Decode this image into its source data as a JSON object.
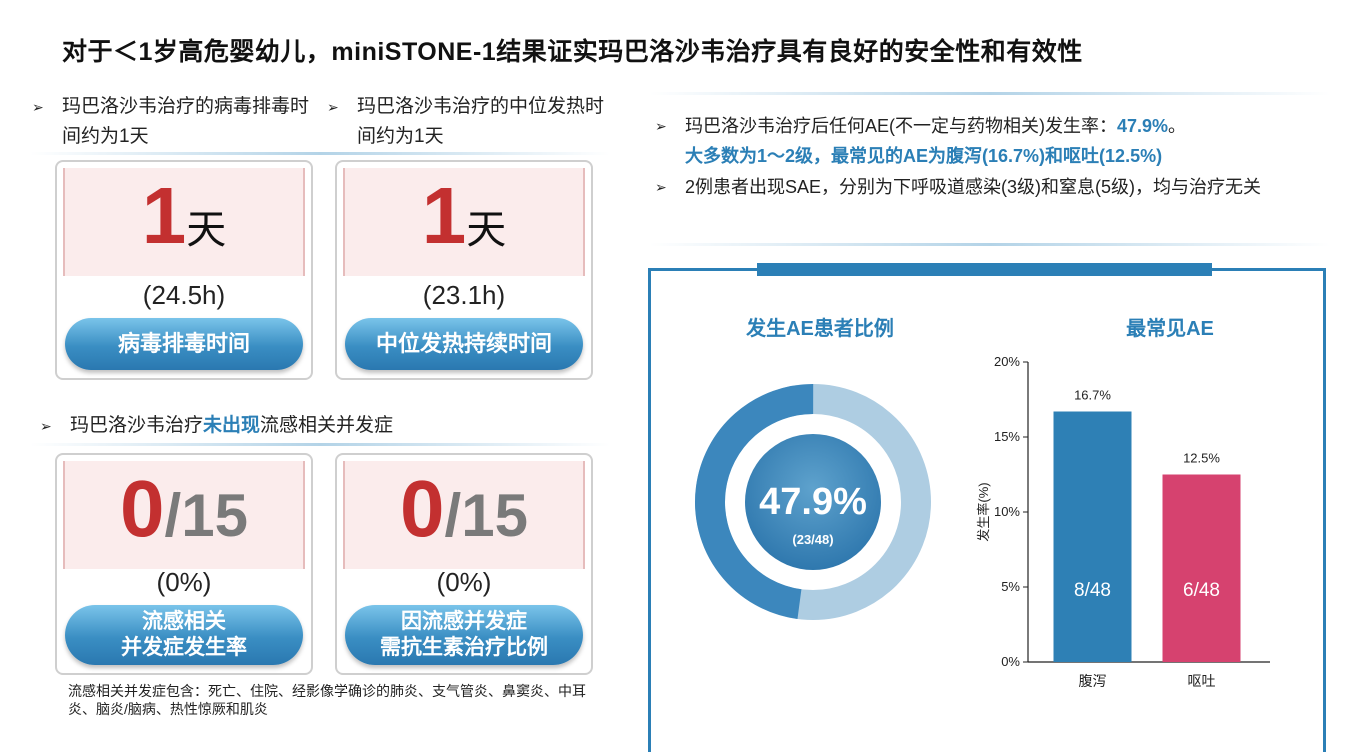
{
  "title": "对于＜1岁高危婴幼儿，miniSTONE-1结果证实玛巴洛沙韦治疗具有良好的安全性和有效性",
  "left": {
    "bullet1": "玛巴洛沙韦治疗的病毒排毒时间约为1天",
    "bullet2": "玛巴洛沙韦治疗的中位发热时间约为1天",
    "cards_top": [
      {
        "num": "1",
        "unit": "天",
        "sub": "(24.5h)",
        "pill": "病毒排毒时间"
      },
      {
        "num": "1",
        "unit": "天",
        "sub": "(23.1h)",
        "pill": "中位发热持续时间"
      }
    ],
    "bullet3_pre": "玛巴洛沙韦治疗",
    "bullet3_hl": "未出现",
    "bullet3_post": "流感相关并发症",
    "cards_bottom": [
      {
        "num": "0",
        "den": "/15",
        "sub": "(0%)",
        "pill_line1": "流感相关",
        "pill_line2": "并发症发生率"
      },
      {
        "num": "0",
        "den": "/15",
        "sub": "(0%)",
        "pill_line1": "因流感并发症",
        "pill_line2": "需抗生素治疗比例"
      }
    ],
    "footnote": "流感相关并发症包含：死亡、住院、经影像学确诊的肺炎、支气管炎、鼻窦炎、中耳炎、脑炎/脑病、热性惊厥和肌炎"
  },
  "right": {
    "bullet1_pre": "玛巴洛沙韦治疗后任何AE(不一定与药物相关)发生率：",
    "bullet1_hl": "47.9%",
    "bullet1_tail": "。",
    "bullet1_line2": "大多数为1～2级，最常见的AE为腹泻(16.7%)和呕吐(12.5%)",
    "bullet2": "2例患者出现SAE，分别为下呼吸道感染(3级)和窒息(5级)，均与治疗无关",
    "donut": {
      "title": "发生AE患者比例",
      "value_label": "47.9%",
      "fraction": "(23/48)",
      "percent": 47.9
    },
    "bar_title": "最常见AE"
  },
  "chart_data": {
    "type": "bar",
    "title": "最常见AE",
    "categories": [
      "腹泻",
      "呕吐"
    ],
    "values": [
      16.7,
      12.5
    ],
    "value_labels": [
      "16.7%",
      "12.5%"
    ],
    "inner_labels": [
      "8/48",
      "6/48"
    ],
    "colors": [
      "#2e80b5",
      "#d6426f"
    ],
    "ylabel": "发生率(%)",
    "xlabel": "",
    "ylim": [
      0,
      20
    ],
    "yticks": [
      "0%",
      "5%",
      "10%",
      "15%",
      "20%"
    ],
    "grid": false
  },
  "colors": {
    "accent": "#2b7fb6",
    "highlight_red": "#c33030",
    "vomit_pink": "#d6426f"
  }
}
